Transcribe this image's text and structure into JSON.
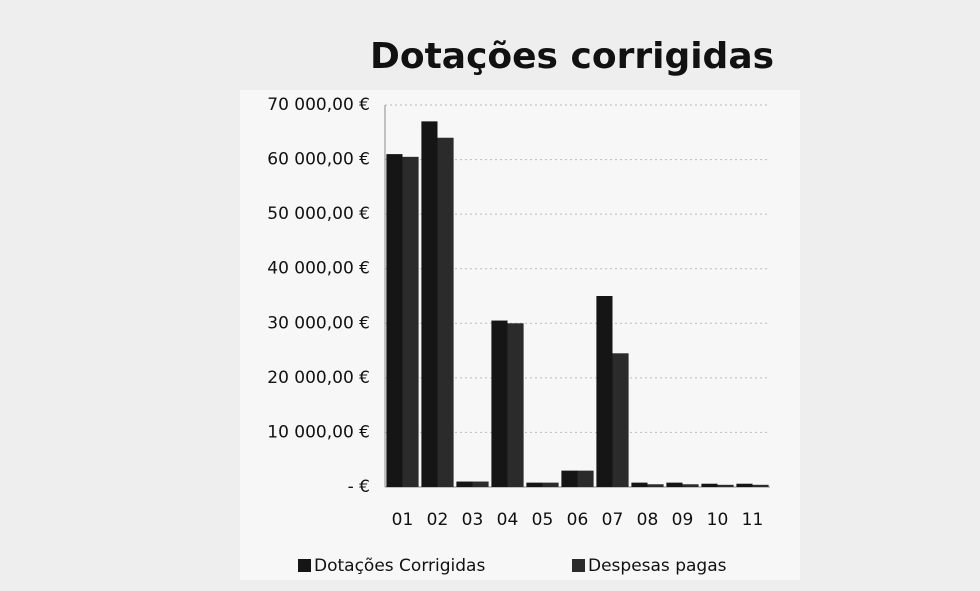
{
  "chart_data": {
    "type": "bar",
    "title": "Dotações corrigidas",
    "categories": [
      "01",
      "02",
      "03",
      "04",
      "05",
      "06",
      "07",
      "08",
      "09",
      "10",
      "11"
    ],
    "series": [
      {
        "name": "Dotações Corrigidas",
        "color": "#151515",
        "values": [
          61000,
          67000,
          1000,
          30500,
          800,
          3000,
          35000,
          800,
          800,
          600,
          600
        ]
      },
      {
        "name": "Despesas pagas",
        "color": "#2b2b2b",
        "values": [
          60500,
          64000,
          1000,
          30000,
          800,
          3000,
          24500,
          500,
          500,
          400,
          400
        ]
      }
    ],
    "ylim": [
      0,
      70000
    ],
    "yticks": [
      {
        "value": 0,
        "label": "- €"
      },
      {
        "value": 10000,
        "label": "10 000,00 €"
      },
      {
        "value": 20000,
        "label": "20 000,00 €"
      },
      {
        "value": 30000,
        "label": "30 000,00 €"
      },
      {
        "value": 40000,
        "label": "40 000,00 €"
      },
      {
        "value": 50000,
        "label": "50 000,00 €"
      },
      {
        "value": 60000,
        "label": "60 000,00 €"
      },
      {
        "value": 70000,
        "label": "70 000,00 €"
      }
    ],
    "grid": true,
    "legend": "bottom"
  }
}
